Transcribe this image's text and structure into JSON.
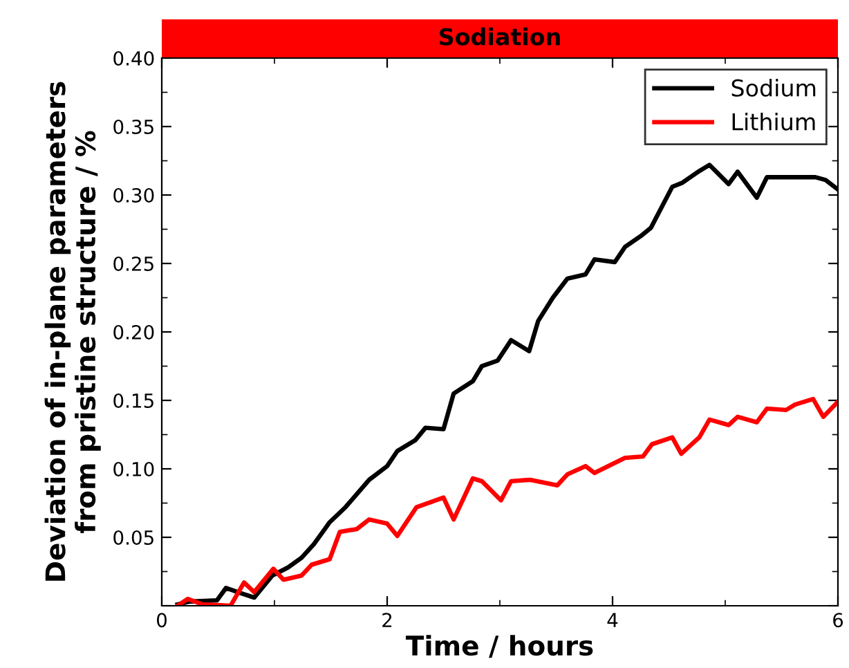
{
  "chart_data": {
    "type": "line",
    "title": "Sodiation",
    "xlabel": "Time / hours",
    "ylabel": "Deviation of in-plane parameters\nfrom pristine structure / %",
    "xlim": [
      0,
      6
    ],
    "xticks": [
      0,
      2,
      4,
      6
    ],
    "ylim": [
      0,
      0.4
    ],
    "yticks": [
      {
        "value": 0,
        "label": null
      },
      0.05,
      {
        "value": 0.1,
        "label": "0.10"
      },
      0.15,
      {
        "value": 0.2,
        "label": "0.20"
      },
      0.25,
      {
        "value": 0.3,
        "label": "0.30"
      },
      0.35,
      {
        "value": 0.4,
        "label": "0.40"
      }
    ],
    "grid": false,
    "legend": "top right",
    "marker": "none",
    "line_style": "solid",
    "series": [
      {
        "name": "Sodium",
        "color": "#000000",
        "x": [
          0.14,
          0.24,
          0.49,
          0.57,
          0.71,
          0.82,
          0.98,
          1.12,
          1.24,
          1.35,
          1.49,
          1.63,
          1.84,
          2.0,
          2.09,
          2.25,
          2.34,
          2.5,
          2.59,
          2.76,
          2.84,
          2.98,
          3.1,
          3.26,
          3.34,
          3.47,
          3.6,
          3.76,
          3.84,
          4.02,
          4.11,
          4.25,
          4.34,
          4.53,
          4.62,
          4.76,
          4.86,
          5.03,
          5.11,
          5.28,
          5.37,
          5.8,
          5.89,
          6.0
        ],
        "values": [
          0.001,
          0.003,
          0.004,
          0.013,
          0.009,
          0.006,
          0.022,
          0.028,
          0.035,
          0.045,
          0.061,
          0.072,
          0.092,
          0.102,
          0.113,
          0.121,
          0.13,
          0.129,
          0.155,
          0.164,
          0.175,
          0.179,
          0.194,
          0.186,
          0.208,
          0.225,
          0.239,
          0.242,
          0.253,
          0.251,
          0.262,
          0.27,
          0.276,
          0.306,
          0.309,
          0.317,
          0.322,
          0.308,
          0.317,
          0.298,
          0.313,
          0.313,
          0.311,
          0.304
        ]
      },
      {
        "name": "Lithium",
        "color": "#ff0000",
        "x": [
          0.14,
          0.23,
          0.36,
          0.61,
          0.73,
          0.82,
          0.99,
          1.08,
          1.24,
          1.33,
          1.49,
          1.58,
          1.73,
          1.84,
          2.0,
          2.09,
          2.26,
          2.5,
          2.59,
          2.76,
          2.84,
          3.01,
          3.1,
          3.27,
          3.51,
          3.6,
          3.76,
          3.84,
          4.11,
          4.27,
          4.35,
          4.53,
          4.61,
          4.77,
          4.86,
          5.03,
          5.11,
          5.28,
          5.37,
          5.54,
          5.62,
          5.78,
          5.87,
          6.0
        ],
        "values": [
          0.0,
          0.005,
          0.001,
          0.0,
          0.017,
          0.01,
          0.027,
          0.019,
          0.022,
          0.03,
          0.034,
          0.054,
          0.056,
          0.063,
          0.06,
          0.051,
          0.072,
          0.079,
          0.063,
          0.093,
          0.091,
          0.077,
          0.091,
          0.092,
          0.088,
          0.096,
          0.102,
          0.097,
          0.108,
          0.109,
          0.118,
          0.123,
          0.111,
          0.123,
          0.136,
          0.132,
          0.138,
          0.134,
          0.144,
          0.143,
          0.147,
          0.151,
          0.138,
          0.149
        ]
      }
    ]
  }
}
